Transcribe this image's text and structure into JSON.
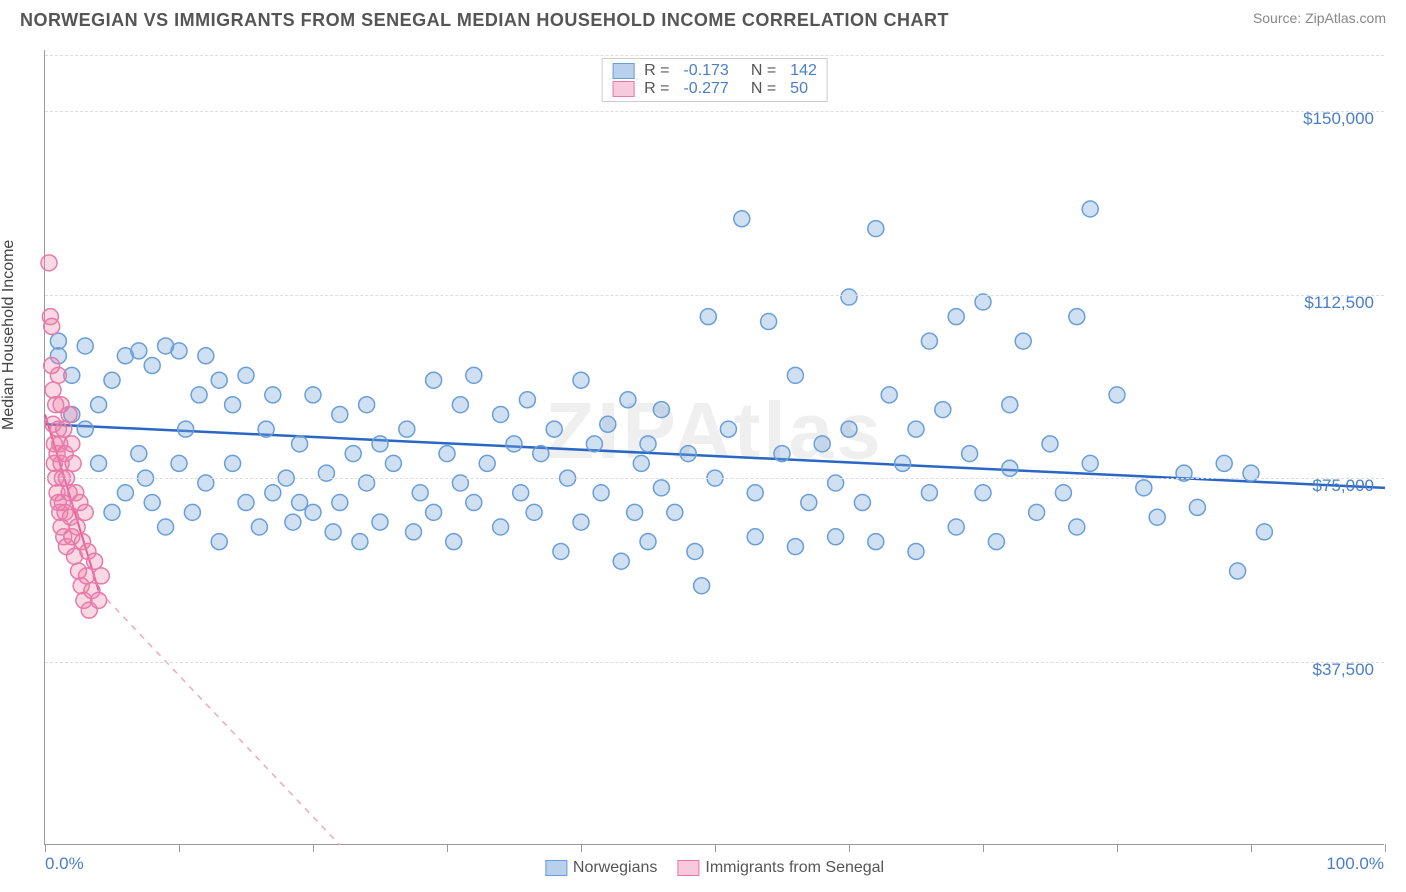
{
  "title": "NORWEGIAN VS IMMIGRANTS FROM SENEGAL MEDIAN HOUSEHOLD INCOME CORRELATION CHART",
  "source": "Source: ZipAtlas.com",
  "watermark": "ZIPAtlas",
  "ylabel": "Median Household Income",
  "chart": {
    "type": "scatter",
    "xlim": [
      0,
      100
    ],
    "ylim": [
      0,
      162500
    ],
    "yticks": [
      37500,
      75000,
      112500,
      150000
    ],
    "ytick_labels": [
      "$37,500",
      "$75,000",
      "$112,500",
      "$150,000"
    ],
    "xtick_positions": [
      0,
      10,
      20,
      30,
      40,
      50,
      60,
      70,
      80,
      90,
      100
    ],
    "xtick_labels_shown": {
      "0": "0.0%",
      "100": "100.0%"
    },
    "grid_color": "#dddddd",
    "background_color": "#ffffff",
    "axis_color": "#999999",
    "tick_label_color": "#4a7ec9",
    "marker_radius": 8,
    "marker_stroke_width": 1.5
  },
  "series": [
    {
      "name": "Norwegians",
      "color_fill": "rgba(120,165,220,0.35)",
      "color_stroke": "#6a9ed8",
      "swatch_fill": "#b9d0ec",
      "swatch_stroke": "#6a9ed8",
      "R": "-0.173",
      "N": "142",
      "trend": {
        "x1": 0,
        "y1": 86000,
        "x2": 100,
        "y2": 73000,
        "color": "#2a66c4",
        "width": 2.5,
        "dash": "none"
      },
      "points": [
        [
          1,
          103000
        ],
        [
          1,
          100000
        ],
        [
          2,
          96000
        ],
        [
          2,
          88000
        ],
        [
          3,
          102000
        ],
        [
          3,
          85000
        ],
        [
          4,
          90000
        ],
        [
          4,
          78000
        ],
        [
          5,
          95000
        ],
        [
          5,
          68000
        ],
        [
          6,
          100000
        ],
        [
          6,
          72000
        ],
        [
          7,
          101000
        ],
        [
          7,
          80000
        ],
        [
          7.5,
          75000
        ],
        [
          8,
          98000
        ],
        [
          8,
          70000
        ],
        [
          9,
          102000
        ],
        [
          9,
          65000
        ],
        [
          10,
          101000
        ],
        [
          10,
          78000
        ],
        [
          10.5,
          85000
        ],
        [
          11,
          68000
        ],
        [
          11.5,
          92000
        ],
        [
          12,
          100000
        ],
        [
          12,
          74000
        ],
        [
          13,
          95000
        ],
        [
          13,
          62000
        ],
        [
          14,
          90000
        ],
        [
          14,
          78000
        ],
        [
          15,
          96000
        ],
        [
          15,
          70000
        ],
        [
          16,
          65000
        ],
        [
          16.5,
          85000
        ],
        [
          17,
          92000
        ],
        [
          17,
          72000
        ],
        [
          18,
          75000
        ],
        [
          18.5,
          66000
        ],
        [
          19,
          82000
        ],
        [
          19,
          70000
        ],
        [
          20,
          92000
        ],
        [
          20,
          68000
        ],
        [
          21,
          76000
        ],
        [
          21.5,
          64000
        ],
        [
          22,
          88000
        ],
        [
          22,
          70000
        ],
        [
          23,
          80000
        ],
        [
          23.5,
          62000
        ],
        [
          24,
          90000
        ],
        [
          24,
          74000
        ],
        [
          25,
          82000
        ],
        [
          25,
          66000
        ],
        [
          26,
          78000
        ],
        [
          27,
          85000
        ],
        [
          27.5,
          64000
        ],
        [
          28,
          72000
        ],
        [
          29,
          95000
        ],
        [
          29,
          68000
        ],
        [
          30,
          80000
        ],
        [
          30.5,
          62000
        ],
        [
          31,
          90000
        ],
        [
          31,
          74000
        ],
        [
          32,
          96000
        ],
        [
          32,
          70000
        ],
        [
          33,
          78000
        ],
        [
          34,
          88000
        ],
        [
          34,
          65000
        ],
        [
          35,
          82000
        ],
        [
          35.5,
          72000
        ],
        [
          36,
          91000
        ],
        [
          36.5,
          68000
        ],
        [
          37,
          80000
        ],
        [
          38,
          85000
        ],
        [
          38.5,
          60000
        ],
        [
          39,
          75000
        ],
        [
          40,
          95000
        ],
        [
          40,
          66000
        ],
        [
          41,
          82000
        ],
        [
          41.5,
          72000
        ],
        [
          42,
          86000
        ],
        [
          43,
          58000
        ],
        [
          43.5,
          91000
        ],
        [
          44,
          68000
        ],
        [
          44.5,
          78000
        ],
        [
          45,
          82000
        ],
        [
          45,
          62000
        ],
        [
          46,
          89000
        ],
        [
          46,
          73000
        ],
        [
          47,
          68000
        ],
        [
          48,
          80000
        ],
        [
          48.5,
          60000
        ],
        [
          49,
          53000
        ],
        [
          49.5,
          108000
        ],
        [
          50,
          75000
        ],
        [
          51,
          85000
        ],
        [
          52,
          128000
        ],
        [
          53,
          63000
        ],
        [
          53,
          72000
        ],
        [
          54,
          107000
        ],
        [
          55,
          80000
        ],
        [
          56,
          96000
        ],
        [
          56,
          61000
        ],
        [
          57,
          70000
        ],
        [
          58,
          82000
        ],
        [
          59,
          63000
        ],
        [
          59,
          74000
        ],
        [
          60,
          112000
        ],
        [
          60,
          85000
        ],
        [
          61,
          70000
        ],
        [
          62,
          126000
        ],
        [
          62,
          62000
        ],
        [
          63,
          92000
        ],
        [
          64,
          78000
        ],
        [
          65,
          85000
        ],
        [
          65,
          60000
        ],
        [
          66,
          103000
        ],
        [
          66,
          72000
        ],
        [
          67,
          89000
        ],
        [
          68,
          108000
        ],
        [
          68,
          65000
        ],
        [
          69,
          80000
        ],
        [
          70,
          111000
        ],
        [
          70,
          72000
        ],
        [
          71,
          62000
        ],
        [
          72,
          90000
        ],
        [
          72,
          77000
        ],
        [
          73,
          103000
        ],
        [
          74,
          68000
        ],
        [
          75,
          82000
        ],
        [
          76,
          72000
        ],
        [
          77,
          108000
        ],
        [
          77,
          65000
        ],
        [
          78,
          130000
        ],
        [
          78,
          78000
        ],
        [
          80,
          92000
        ],
        [
          82,
          73000
        ],
        [
          83,
          67000
        ],
        [
          85,
          76000
        ],
        [
          86,
          69000
        ],
        [
          88,
          78000
        ],
        [
          89,
          56000
        ],
        [
          90,
          76000
        ],
        [
          91,
          64000
        ]
      ]
    },
    {
      "name": "Immigrants from Senegal",
      "color_fill": "rgba(240,130,170,0.3)",
      "color_stroke": "#e77aa8",
      "swatch_fill": "#f7c9db",
      "swatch_stroke": "#e77aa8",
      "R": "-0.277",
      "N": "50",
      "trend_solid": {
        "x1": 0,
        "y1": 88000,
        "x2": 4,
        "y2": 52000,
        "color": "#e8518f",
        "width": 2,
        "dash": "none"
      },
      "trend": {
        "x1": 4,
        "y1": 52000,
        "x2": 22,
        "y2": 0,
        "color": "#f0a8c0",
        "width": 1.5,
        "dash": "6,6"
      },
      "points": [
        [
          0.3,
          119000
        ],
        [
          0.4,
          108000
        ],
        [
          0.5,
          106000
        ],
        [
          0.5,
          98000
        ],
        [
          0.6,
          93000
        ],
        [
          0.6,
          86000
        ],
        [
          0.7,
          82000
        ],
        [
          0.7,
          78000
        ],
        [
          0.8,
          90000
        ],
        [
          0.8,
          75000
        ],
        [
          0.9,
          80000
        ],
        [
          0.9,
          72000
        ],
        [
          1,
          96000
        ],
        [
          1,
          85000
        ],
        [
          1,
          70000
        ],
        [
          1.1,
          82000
        ],
        [
          1.1,
          68000
        ],
        [
          1.2,
          90000
        ],
        [
          1.2,
          78000
        ],
        [
          1.2,
          65000
        ],
        [
          1.3,
          75000
        ],
        [
          1.3,
          70000
        ],
        [
          1.4,
          85000
        ],
        [
          1.4,
          63000
        ],
        [
          1.5,
          80000
        ],
        [
          1.5,
          68000
        ],
        [
          1.6,
          75000
        ],
        [
          1.6,
          61000
        ],
        [
          1.8,
          88000
        ],
        [
          1.8,
          72000
        ],
        [
          1.9,
          67000
        ],
        [
          2,
          82000
        ],
        [
          2,
          63000
        ],
        [
          2.1,
          78000
        ],
        [
          2.2,
          59000
        ],
        [
          2.3,
          72000
        ],
        [
          2.4,
          65000
        ],
        [
          2.5,
          56000
        ],
        [
          2.6,
          70000
        ],
        [
          2.7,
          53000
        ],
        [
          2.8,
          62000
        ],
        [
          2.9,
          50000
        ],
        [
          3,
          68000
        ],
        [
          3.1,
          55000
        ],
        [
          3.2,
          60000
        ],
        [
          3.3,
          48000
        ],
        [
          3.5,
          52000
        ],
        [
          3.7,
          58000
        ],
        [
          4,
          50000
        ],
        [
          4.2,
          55000
        ]
      ]
    }
  ],
  "legend_bottom": [
    {
      "label": "Norwegians"
    },
    {
      "label": "Immigrants from Senegal"
    }
  ]
}
